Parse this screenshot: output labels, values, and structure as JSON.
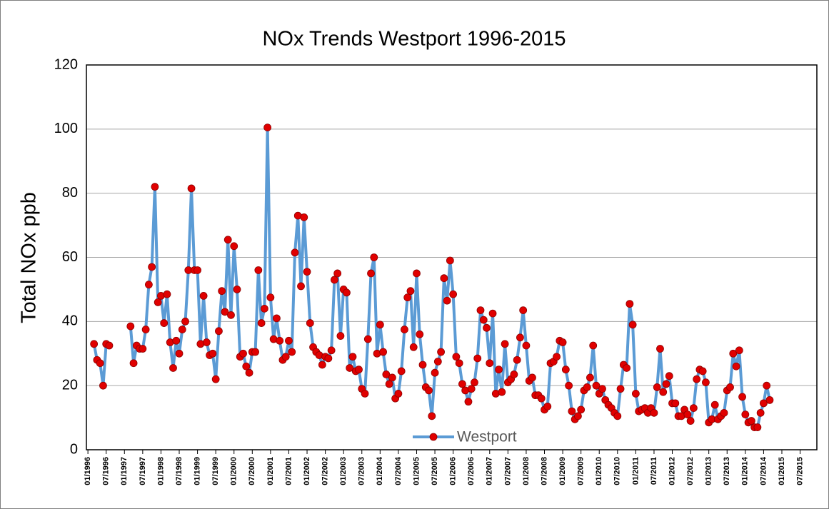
{
  "chart_data": {
    "type": "line",
    "title": "NOx Trends Westport 1996-2015",
    "y_label": "Total NOx ppb",
    "categories": [
      "01/1996",
      null,
      null,
      null,
      null,
      null,
      "07/1996",
      null,
      null,
      null,
      null,
      null,
      "01/1997",
      null,
      null,
      null,
      null,
      null,
      "07/1997",
      null,
      null,
      null,
      null,
      null,
      "01/1998",
      null,
      null,
      null,
      null,
      null,
      "07/1998",
      null,
      null,
      null,
      null,
      null,
      "01/1999",
      null,
      null,
      null,
      null,
      null,
      "07/1999",
      null,
      null,
      null,
      null,
      null,
      "01/2000",
      null,
      null,
      null,
      null,
      null,
      "07/2000",
      null,
      null,
      null,
      null,
      null,
      "01/2001",
      null,
      null,
      null,
      null,
      null,
      "07/2001",
      null,
      null,
      null,
      null,
      null,
      "01/2002",
      null,
      null,
      null,
      null,
      null,
      "07/2002",
      null,
      null,
      null,
      null,
      null,
      "01/2003",
      null,
      null,
      null,
      null,
      null,
      "07/2003",
      null,
      null,
      null,
      null,
      null,
      "01/2004",
      null,
      null,
      null,
      null,
      null,
      "07/2004",
      null,
      null,
      null,
      null,
      null,
      "01/2005",
      null,
      null,
      null,
      null,
      null,
      "07/2005",
      null,
      null,
      null,
      null,
      null,
      "01/2006",
      null,
      null,
      null,
      null,
      null,
      "07/2006",
      null,
      null,
      null,
      null,
      null,
      "01/2007",
      null,
      null,
      null,
      null,
      null,
      "07/2007",
      null,
      null,
      null,
      null,
      null,
      "01/2008",
      null,
      null,
      null,
      null,
      null,
      "07/2008",
      null,
      null,
      null,
      null,
      null,
      "01/2009",
      null,
      null,
      null,
      null,
      null,
      "07/2009",
      null,
      null,
      null,
      null,
      null,
      "01/2010",
      null,
      null,
      null,
      null,
      null,
      "07/2010",
      null,
      null,
      null,
      null,
      null,
      "01/2011",
      null,
      null,
      null,
      null,
      null,
      "07/2011",
      null,
      null,
      null,
      null,
      null,
      "01/2012",
      null,
      null,
      null,
      null,
      null,
      "07/2012",
      null,
      null,
      null,
      null,
      null,
      "01/2013",
      null,
      null,
      null,
      null,
      null,
      "07/2013",
      null,
      null,
      null,
      null,
      null,
      "01/2014",
      null,
      null,
      null,
      null,
      null,
      "07/2014",
      null,
      null,
      null,
      null,
      null,
      "01/2015",
      null,
      null,
      null,
      null,
      null,
      "07/2015",
      null,
      null,
      null,
      null,
      null
    ],
    "series": [
      {
        "name": "Westport",
        "color": "#5b9bd5",
        "marker_color": "#e00000",
        "values": [
          null,
          null,
          33,
          28,
          27,
          20,
          33,
          32.5,
          null,
          null,
          null,
          null,
          null,
          null,
          38.5,
          27,
          32.5,
          31.5,
          31.5,
          37.5,
          51.5,
          57,
          82,
          46,
          48,
          39.5,
          48.5,
          33.5,
          25.5,
          34,
          30,
          37.5,
          40,
          56,
          81.5,
          56,
          56,
          33,
          48,
          33.5,
          29.5,
          30,
          22,
          37,
          49.5,
          43,
          65.5,
          42,
          63.5,
          50,
          29,
          30,
          26,
          24,
          30.5,
          30.5,
          56,
          39.5,
          44,
          100.5,
          47.5,
          34.5,
          41,
          34,
          28,
          29,
          34,
          30.5,
          61.5,
          73,
          51,
          72.5,
          55.5,
          39.5,
          32,
          30.5,
          29.5,
          26.5,
          29,
          28.5,
          31,
          53,
          55,
          35.5,
          50,
          49,
          25.5,
          29,
          24.5,
          25,
          19,
          17.5,
          34.5,
          55,
          60,
          30,
          39,
          30.5,
          23.5,
          20.5,
          22.5,
          16,
          17.5,
          24.5,
          37.5,
          47.5,
          49.5,
          32,
          55,
          36,
          26.5,
          19.5,
          18.5,
          10.5,
          24,
          27.5,
          30.5,
          53.5,
          46.5,
          59,
          48.5,
          29,
          27,
          20.5,
          18.5,
          15,
          19,
          21,
          28.5,
          43.5,
          40.5,
          38,
          27,
          42.5,
          17.5,
          25,
          18,
          33,
          21,
          22,
          23.5,
          28,
          35,
          43.5,
          32.5,
          21.5,
          22.5,
          17,
          17,
          16,
          12.5,
          13.5,
          27,
          27.5,
          29,
          34,
          33.5,
          25,
          20,
          12,
          9.5,
          10.5,
          12.5,
          18.5,
          19.5,
          22.5,
          32.5,
          20,
          17.5,
          19,
          15.5,
          14,
          13,
          11.5,
          10.5,
          19,
          26.5,
          25.5,
          45.5,
          39,
          17.5,
          12,
          12.5,
          13,
          11.5,
          13,
          11.5,
          19.5,
          31.5,
          18,
          20.5,
          23,
          14.5,
          14.5,
          10.5,
          10.5,
          12.5,
          11,
          9,
          13,
          22,
          25,
          24.5,
          21,
          8.5,
          9.5,
          14,
          9.5,
          10.5,
          11.5,
          18.5,
          19.5,
          30,
          26,
          31,
          16.5,
          11,
          8.5,
          9,
          7,
          7,
          11.5,
          14.5,
          20,
          15.5,
          null,
          null,
          null,
          null,
          null,
          null,
          null,
          null,
          null,
          null,
          null,
          null,
          null,
          null,
          null
        ]
      }
    ],
    "ylim": [
      0,
      120
    ],
    "yticks": [
      0,
      20,
      40,
      60,
      80,
      100,
      120
    ],
    "grid": true,
    "legend": "bottom"
  }
}
